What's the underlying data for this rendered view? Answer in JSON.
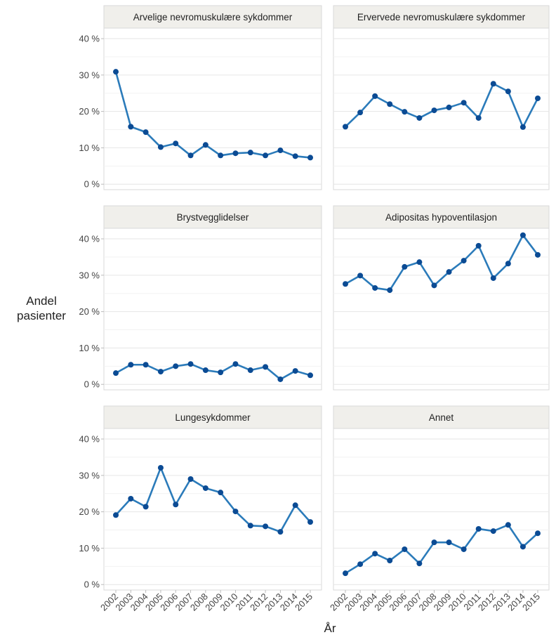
{
  "chart_data": {
    "type": "line",
    "xlabel": "År",
    "ylabel": "Andel pasienter",
    "categories": [
      "2002",
      "2003",
      "2004",
      "2005",
      "2006",
      "2007",
      "2008",
      "2009",
      "2010",
      "2011",
      "2012",
      "2013",
      "2014",
      "2015"
    ],
    "ylim": [
      -1.5,
      42.9
    ],
    "yticks": [
      {
        "value": 0,
        "label": "0 %"
      },
      {
        "value": 10,
        "label": "10 %"
      },
      {
        "value": 20,
        "label": "20 %"
      },
      {
        "value": 30,
        "label": "30 %"
      },
      {
        "value": 40,
        "label": "40 %"
      }
    ],
    "yminor": [
      5,
      15,
      25,
      35
    ],
    "grid": true,
    "color": "#2b7bba",
    "marker_color": "#0b4b94",
    "facets": [
      {
        "title": "Arvelige nevromuskulære sykdommer",
        "values": [
          30.9,
          15.8,
          14.3,
          10.2,
          11.2,
          7.9,
          10.8,
          7.9,
          8.5,
          8.7,
          7.9,
          9.3,
          7.7,
          7.3
        ]
      },
      {
        "title": "Ervervede nevromuskulære sykdommer",
        "values": [
          15.8,
          19.7,
          24.2,
          22.0,
          19.9,
          18.2,
          20.3,
          21.1,
          22.4,
          18.2,
          27.6,
          25.5,
          15.7,
          23.6
        ]
      },
      {
        "title": "Brystvegglidelser",
        "values": [
          3.1,
          5.4,
          5.4,
          3.5,
          5.0,
          5.6,
          3.9,
          3.3,
          5.6,
          3.9,
          4.8,
          1.4,
          3.7,
          2.5
        ]
      },
      {
        "title": "Adipositas hypoventilasjon",
        "values": [
          27.6,
          29.9,
          26.5,
          25.9,
          32.3,
          33.6,
          27.2,
          30.9,
          34.0,
          38.1,
          29.2,
          33.2,
          41.0,
          35.6
        ]
      },
      {
        "title": "Lungesykdommer",
        "values": [
          19.1,
          23.6,
          21.4,
          32.1,
          22.0,
          29.0,
          26.5,
          25.3,
          20.1,
          16.2,
          16.0,
          14.5,
          21.8,
          17.2
        ]
      },
      {
        "title": "Annet",
        "values": [
          3.1,
          5.6,
          8.5,
          6.6,
          9.7,
          5.8,
          11.6,
          11.6,
          9.7,
          15.3,
          14.7,
          16.4,
          10.4,
          14.1
        ]
      }
    ]
  }
}
